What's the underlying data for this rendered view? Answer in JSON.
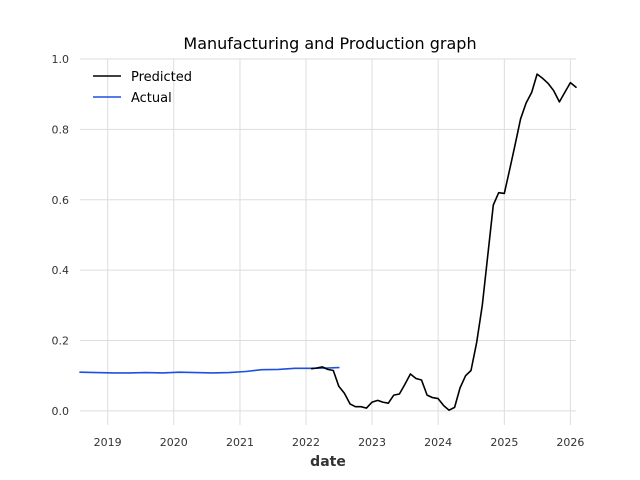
{
  "chart_data": {
    "type": "line",
    "title": "Manufacturing and Production graph",
    "xlabel": "date",
    "ylabel": "",
    "xlim": [
      "2018-08-01",
      "2026-02-01"
    ],
    "ylim": [
      -0.04,
      1.0
    ],
    "x_ticks": [
      "2019",
      "2020",
      "2021",
      "2022",
      "2023",
      "2024",
      "2025",
      "2026"
    ],
    "y_ticks": [
      "0.0",
      "0.2",
      "0.4",
      "0.6",
      "0.8",
      "1.0"
    ],
    "grid": true,
    "legend_position": "top-left",
    "series": [
      {
        "name": "Predicted",
        "color": "#000000",
        "points": [
          [
            "2022-02-01",
            0.12
          ],
          [
            "2022-03-01",
            0.122
          ],
          [
            "2022-04-01",
            0.125
          ],
          [
            "2022-05-01",
            0.118
          ],
          [
            "2022-06-01",
            0.115
          ],
          [
            "2022-07-01",
            0.07
          ],
          [
            "2022-08-01",
            0.05
          ],
          [
            "2022-09-01",
            0.02
          ],
          [
            "2022-10-01",
            0.012
          ],
          [
            "2022-11-01",
            0.012
          ],
          [
            "2022-12-01",
            0.008
          ],
          [
            "2023-01-01",
            0.025
          ],
          [
            "2023-02-01",
            0.03
          ],
          [
            "2023-03-01",
            0.025
          ],
          [
            "2023-04-01",
            0.022
          ],
          [
            "2023-05-01",
            0.045
          ],
          [
            "2023-06-01",
            0.048
          ],
          [
            "2023-07-01",
            0.075
          ],
          [
            "2023-08-01",
            0.105
          ],
          [
            "2023-09-01",
            0.092
          ],
          [
            "2023-10-01",
            0.088
          ],
          [
            "2023-11-01",
            0.045
          ],
          [
            "2023-12-01",
            0.038
          ],
          [
            "2024-01-01",
            0.035
          ],
          [
            "2024-02-01",
            0.015
          ],
          [
            "2024-03-01",
            0.002
          ],
          [
            "2024-04-01",
            0.01
          ],
          [
            "2024-05-01",
            0.065
          ],
          [
            "2024-06-01",
            0.1
          ],
          [
            "2024-07-01",
            0.115
          ],
          [
            "2024-08-01",
            0.195
          ],
          [
            "2024-09-01",
            0.3
          ],
          [
            "2024-10-01",
            0.44
          ],
          [
            "2024-11-01",
            0.585
          ],
          [
            "2024-12-01",
            0.62
          ],
          [
            "2025-01-01",
            0.618
          ],
          [
            "2025-02-01",
            0.69
          ],
          [
            "2025-03-01",
            0.755
          ],
          [
            "2025-04-01",
            0.83
          ],
          [
            "2025-05-01",
            0.875
          ],
          [
            "2025-06-01",
            0.905
          ],
          [
            "2025-07-01",
            0.957
          ],
          [
            "2025-08-01",
            0.945
          ],
          [
            "2025-09-01",
            0.93
          ],
          [
            "2025-10-01",
            0.91
          ],
          [
            "2025-11-01",
            0.878
          ],
          [
            "2025-12-01",
            0.905
          ],
          [
            "2026-01-01",
            0.933
          ],
          [
            "2026-02-01",
            0.92
          ]
        ]
      },
      {
        "name": "Actual",
        "color": "#1f4fe0",
        "points": [
          [
            "2018-08-01",
            0.11
          ],
          [
            "2018-11-01",
            0.109
          ],
          [
            "2019-02-01",
            0.108
          ],
          [
            "2019-05-01",
            0.108
          ],
          [
            "2019-08-01",
            0.109
          ],
          [
            "2019-11-01",
            0.108
          ],
          [
            "2020-02-01",
            0.11
          ],
          [
            "2020-05-01",
            0.109
          ],
          [
            "2020-08-01",
            0.108
          ],
          [
            "2020-11-01",
            0.109
          ],
          [
            "2021-02-01",
            0.112
          ],
          [
            "2021-05-01",
            0.117
          ],
          [
            "2021-08-01",
            0.118
          ],
          [
            "2021-11-01",
            0.121
          ],
          [
            "2022-02-01",
            0.121
          ],
          [
            "2022-05-01",
            0.122
          ],
          [
            "2022-07-01",
            0.123
          ]
        ]
      }
    ]
  }
}
